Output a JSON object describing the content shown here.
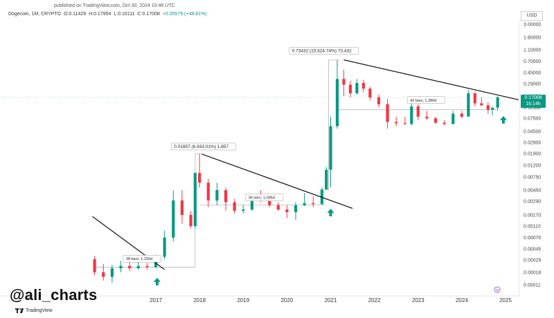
{
  "header": {
    "published": "published on TradingView.com, Oct 30, 2024 10:46 UTC",
    "symbol": "Dogecoin, 1M, CRYPTO",
    "open": "O:0.11429",
    "high": "H:0.17954",
    "low": "L:0.10111",
    "close": "C:0.17008",
    "change": "+0.05579 (+48.81%)"
  },
  "currency": "USD",
  "watermark": "@ali_charts",
  "brand": "TradingView",
  "price_tag": {
    "price": "0.17008",
    "time": "16:14h"
  },
  "colors": {
    "up": "#089981",
    "down": "#f23645",
    "trend": "#111111"
  },
  "chart_data": {
    "type": "candlestick",
    "scale": "log",
    "x_ticks": [
      "2017",
      "2018",
      "2019",
      "2020",
      "2021",
      "2022",
      "2023",
      "2024",
      "2025"
    ],
    "y_ticks": [
      "3.00000",
      "1.80000",
      "1.10000",
      "0.70000",
      "0.45000",
      "0.29000",
      "0.18000",
      "0.11500",
      "0.07500",
      "0.04500",
      "0.02900",
      "0.01900",
      "0.01200",
      "0.00750",
      "0.00450",
      "0.00290",
      "0.00170",
      "0.00110",
      "0.00070",
      "0.00045",
      "0.00029",
      "0.00018",
      "0.00011"
    ],
    "annotations": [
      {
        "label": "38 bars, 1,155d"
      },
      {
        "label": "0.01857 (6,933.01%) 1,857"
      },
      {
        "label": "36 bars, 1,095d"
      },
      {
        "label": "0.73432 (15,524.74%) 73,432"
      },
      {
        "label": "42 bars, 1,280d"
      }
    ],
    "series": [
      {
        "t": 2015.6,
        "o": 0.0003,
        "h": 0.00034,
        "l": 0.00016,
        "c": 0.00018
      },
      {
        "t": 2015.8,
        "o": 0.00018,
        "h": 0.00025,
        "l": 0.00013,
        "c": 0.00015
      },
      {
        "t": 2016.0,
        "o": 0.00015,
        "h": 0.00024,
        "l": 0.00012,
        "c": 0.00021
      },
      {
        "t": 2016.2,
        "o": 0.00021,
        "h": 0.00028,
        "l": 0.00018,
        "c": 0.00023
      },
      {
        "t": 2016.4,
        "o": 0.00023,
        "h": 0.0003,
        "l": 0.00019,
        "c": 0.00021
      },
      {
        "t": 2016.6,
        "o": 0.00021,
        "h": 0.00027,
        "l": 0.0002,
        "c": 0.00023
      },
      {
        "t": 2016.8,
        "o": 0.00023,
        "h": 0.00026,
        "l": 0.0002,
        "c": 0.00022
      },
      {
        "t": 2017.0,
        "o": 0.00022,
        "h": 0.00036,
        "l": 0.00021,
        "c": 0.00033
      },
      {
        "t": 2017.2,
        "o": 0.00033,
        "h": 0.00092,
        "l": 0.0003,
        "c": 0.0007
      },
      {
        "t": 2017.4,
        "o": 0.0007,
        "h": 0.0045,
        "l": 0.0006,
        "c": 0.003
      },
      {
        "t": 2017.6,
        "o": 0.003,
        "h": 0.0045,
        "l": 0.0012,
        "c": 0.0017
      },
      {
        "t": 2017.8,
        "o": 0.0017,
        "h": 0.002,
        "l": 0.001,
        "c": 0.0011
      },
      {
        "t": 2017.9,
        "o": 0.0011,
        "h": 0.009,
        "l": 0.001,
        "c": 0.0088
      },
      {
        "t": 2018.0,
        "o": 0.0088,
        "h": 0.01857,
        "l": 0.005,
        "c": 0.006
      },
      {
        "t": 2018.2,
        "o": 0.006,
        "h": 0.007,
        "l": 0.0023,
        "c": 0.003
      },
      {
        "t": 2018.4,
        "o": 0.003,
        "h": 0.006,
        "l": 0.0025,
        "c": 0.0045
      },
      {
        "t": 2018.6,
        "o": 0.0045,
        "h": 0.005,
        "l": 0.002,
        "c": 0.0028
      },
      {
        "t": 2018.8,
        "o": 0.0028,
        "h": 0.0032,
        "l": 0.0018,
        "c": 0.002
      },
      {
        "t": 2019.0,
        "o": 0.002,
        "h": 0.0025,
        "l": 0.0018,
        "c": 0.0021
      },
      {
        "t": 2019.2,
        "o": 0.0021,
        "h": 0.0035,
        "l": 0.002,
        "c": 0.0032
      },
      {
        "t": 2019.4,
        "o": 0.0032,
        "h": 0.0045,
        "l": 0.0028,
        "c": 0.003
      },
      {
        "t": 2019.6,
        "o": 0.003,
        "h": 0.0033,
        "l": 0.0023,
        "c": 0.0025
      },
      {
        "t": 2019.8,
        "o": 0.0025,
        "h": 0.0028,
        "l": 0.002,
        "c": 0.0021
      },
      {
        "t": 2020.0,
        "o": 0.0021,
        "h": 0.0025,
        "l": 0.0015,
        "c": 0.0019
      },
      {
        "t": 2020.2,
        "o": 0.0019,
        "h": 0.0028,
        "l": 0.0014,
        "c": 0.0025
      },
      {
        "t": 2020.4,
        "o": 0.0025,
        "h": 0.004,
        "l": 0.0024,
        "c": 0.0027
      },
      {
        "t": 2020.6,
        "o": 0.0027,
        "h": 0.0035,
        "l": 0.0023,
        "c": 0.0026
      },
      {
        "t": 2020.8,
        "o": 0.0026,
        "h": 0.005,
        "l": 0.0025,
        "c": 0.0046
      },
      {
        "t": 2020.9,
        "o": 0.0046,
        "h": 0.011,
        "l": 0.0045,
        "c": 0.01
      },
      {
        "t": 2021.0,
        "o": 0.01,
        "h": 0.08,
        "l": 0.005,
        "c": 0.055
      },
      {
        "t": 2021.15,
        "o": 0.055,
        "h": 0.73432,
        "l": 0.05,
        "c": 0.35
      },
      {
        "t": 2021.3,
        "o": 0.35,
        "h": 0.5,
        "l": 0.18,
        "c": 0.28
      },
      {
        "t": 2021.45,
        "o": 0.28,
        "h": 0.33,
        "l": 0.17,
        "c": 0.2
      },
      {
        "t": 2021.6,
        "o": 0.2,
        "h": 0.35,
        "l": 0.19,
        "c": 0.3
      },
      {
        "t": 2021.75,
        "o": 0.3,
        "h": 0.34,
        "l": 0.21,
        "c": 0.24
      },
      {
        "t": 2021.9,
        "o": 0.24,
        "h": 0.26,
        "l": 0.15,
        "c": 0.17
      },
      {
        "t": 2022.1,
        "o": 0.17,
        "h": 0.19,
        "l": 0.115,
        "c": 0.13
      },
      {
        "t": 2022.3,
        "o": 0.13,
        "h": 0.16,
        "l": 0.05,
        "c": 0.065
      },
      {
        "t": 2022.5,
        "o": 0.065,
        "h": 0.08,
        "l": 0.055,
        "c": 0.062
      },
      {
        "t": 2022.7,
        "o": 0.062,
        "h": 0.08,
        "l": 0.058,
        "c": 0.06
      },
      {
        "t": 2022.85,
        "o": 0.06,
        "h": 0.15,
        "l": 0.057,
        "c": 0.12
      },
      {
        "t": 2023.0,
        "o": 0.12,
        "h": 0.13,
        "l": 0.07,
        "c": 0.08
      },
      {
        "t": 2023.2,
        "o": 0.08,
        "h": 0.1,
        "l": 0.07,
        "c": 0.075
      },
      {
        "t": 2023.4,
        "o": 0.075,
        "h": 0.08,
        "l": 0.06,
        "c": 0.063
      },
      {
        "t": 2023.6,
        "o": 0.063,
        "h": 0.07,
        "l": 0.057,
        "c": 0.06
      },
      {
        "t": 2023.8,
        "o": 0.06,
        "h": 0.1,
        "l": 0.059,
        "c": 0.09
      },
      {
        "t": 2024.0,
        "o": 0.09,
        "h": 0.1,
        "l": 0.075,
        "c": 0.08
      },
      {
        "t": 2024.15,
        "o": 0.08,
        "h": 0.228,
        "l": 0.08,
        "c": 0.2
      },
      {
        "t": 2024.3,
        "o": 0.2,
        "h": 0.21,
        "l": 0.12,
        "c": 0.135
      },
      {
        "t": 2024.45,
        "o": 0.135,
        "h": 0.17,
        "l": 0.12,
        "c": 0.125
      },
      {
        "t": 2024.6,
        "o": 0.125,
        "h": 0.14,
        "l": 0.09,
        "c": 0.105
      },
      {
        "t": 2024.7,
        "o": 0.105,
        "h": 0.11,
        "l": 0.085,
        "c": 0.114
      },
      {
        "t": 2024.82,
        "o": 0.11429,
        "h": 0.17954,
        "l": 0.10111,
        "c": 0.17008
      }
    ]
  }
}
